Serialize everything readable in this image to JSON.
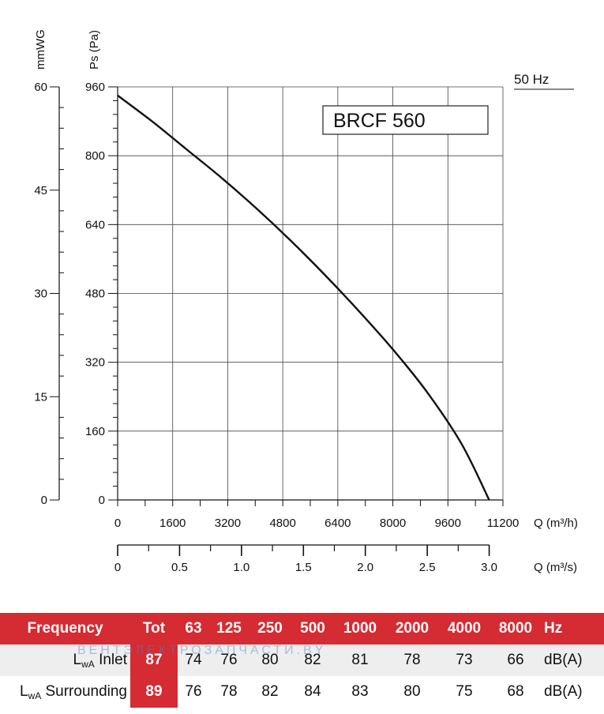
{
  "chart_data": {
    "type": "line",
    "title": "BRCF 560",
    "frequency_note": "50 Hz",
    "y_axis_left": {
      "label": "mmWG",
      "ticks": [
        "0",
        "15",
        "30",
        "45",
        "60"
      ],
      "range": [
        0,
        60
      ]
    },
    "y_axis_main": {
      "label": "Ps (Pa)",
      "ticks": [
        "0",
        "160",
        "320",
        "480",
        "640",
        "800",
        "960"
      ],
      "range": [
        0,
        960
      ]
    },
    "x_axis_main": {
      "label": "Q (m³/h)",
      "ticks": [
        "0",
        "1600",
        "3200",
        "4800",
        "6400",
        "8000",
        "9600",
        "11200"
      ],
      "range": [
        0,
        11200
      ]
    },
    "x_axis_secondary": {
      "label": "Q (m³/s)",
      "ticks": [
        "0",
        "0.5",
        "1.0",
        "1.5",
        "2.0",
        "2.5",
        "3.0"
      ],
      "range": [
        0,
        3.0
      ]
    },
    "grid": true,
    "series": [
      {
        "x": [
          0,
          1000,
          2000,
          3000,
          4000,
          5000,
          6000,
          7000,
          8000,
          9000,
          10000,
          10800
        ],
        "y": [
          940,
          880,
          815,
          750,
          680,
          605,
          525,
          440,
          350,
          250,
          130,
          0
        ]
      }
    ]
  },
  "table": {
    "header": {
      "label": "Frequency",
      "tot": "Tot",
      "bands": [
        "63",
        "125",
        "250",
        "500",
        "1000",
        "2000",
        "4000",
        "8000"
      ],
      "unit": "Hz"
    },
    "rows": [
      {
        "label_main": "L",
        "label_sub": "wA",
        "label_rest": " Inlet",
        "tot": "87",
        "values": [
          "74",
          "76",
          "80",
          "82",
          "81",
          "78",
          "73",
          "66"
        ],
        "unit": "dB(A)"
      },
      {
        "label_main": "L",
        "label_sub": "wA",
        "label_rest": " Surrounding",
        "tot": "89",
        "values": [
          "76",
          "78",
          "82",
          "84",
          "83",
          "80",
          "75",
          "68"
        ],
        "unit": "dB(A)"
      }
    ]
  },
  "watermark": "ВЕНТЭЛЕКТРОЗАПЧАСТИ.BY"
}
